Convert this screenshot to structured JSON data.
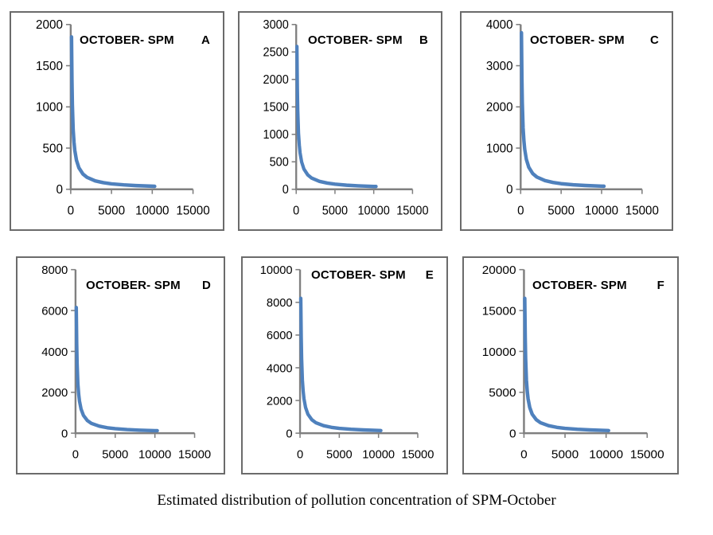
{
  "caption": "Estimated distribution of pollution concentration of SPM-October",
  "colors": {
    "curve": "#4F81BD",
    "axis": "#808080",
    "panel_border": "#6b6b6b",
    "text": "#000000"
  },
  "chart_data": [
    {
      "type": "line",
      "title": "OCTOBER- SPM",
      "panel_letter": "A",
      "xlabel": "",
      "ylabel": "",
      "xlim": [
        0,
        15000
      ],
      "ylim": [
        0,
        2000
      ],
      "xticks": [
        0,
        5000,
        10000,
        15000
      ],
      "yticks": [
        0,
        500,
        1000,
        1500,
        2000
      ],
      "x": [
        100,
        150,
        200,
        300,
        400,
        500,
        700,
        1000,
        1500,
        2000,
        3000,
        4000,
        5000,
        6500,
        8000,
        10000,
        10300
      ],
      "y": [
        1850,
        1310,
        1027,
        727,
        570,
        472,
        353,
        261,
        185,
        145,
        102,
        80,
        66,
        53,
        45,
        37,
        36
      ]
    },
    {
      "type": "line",
      "title": "OCTOBER- SPM",
      "panel_letter": "B",
      "xlabel": "",
      "ylabel": "",
      "xlim": [
        0,
        15000
      ],
      "ylim": [
        0,
        3000
      ],
      "xticks": [
        0,
        5000,
        10000,
        15000
      ],
      "yticks": [
        0,
        500,
        1000,
        1500,
        2000,
        2500,
        3000
      ],
      "x": [
        100,
        150,
        200,
        300,
        400,
        500,
        700,
        1000,
        1500,
        2000,
        3000,
        4000,
        5000,
        6500,
        8000,
        10000,
        10300
      ],
      "y": [
        2600,
        1841,
        1443,
        1022,
        801,
        663,
        497,
        367,
        260,
        203,
        144,
        113,
        93,
        75,
        63,
        52,
        51
      ]
    },
    {
      "type": "line",
      "title": "OCTOBER- SPM",
      "panel_letter": "C",
      "xlabel": "",
      "ylabel": "",
      "xlim": [
        0,
        15000
      ],
      "ylim": [
        0,
        4000
      ],
      "xticks": [
        0,
        5000,
        10000,
        15000
      ],
      "yticks": [
        0,
        1000,
        2000,
        3000,
        4000
      ],
      "x": [
        100,
        150,
        200,
        300,
        400,
        500,
        700,
        1000,
        1500,
        2000,
        3000,
        4000,
        5000,
        6500,
        8000,
        10000,
        10300
      ],
      "y": [
        3800,
        2690,
        2109,
        1493,
        1170,
        969,
        726,
        536,
        380,
        297,
        211,
        165,
        136,
        109,
        92,
        76,
        74
      ]
    },
    {
      "type": "line",
      "title": "OCTOBER- SPM",
      "panel_letter": "D",
      "xlabel": "",
      "ylabel": "",
      "xlim": [
        0,
        15000
      ],
      "ylim": [
        0,
        8000
      ],
      "xticks": [
        0,
        5000,
        10000,
        15000
      ],
      "yticks": [
        0,
        2000,
        4000,
        6000,
        8000
      ],
      "x": [
        100,
        150,
        200,
        300,
        400,
        500,
        700,
        1000,
        1500,
        2000,
        3000,
        4000,
        5000,
        6500,
        8000,
        10000,
        10300
      ],
      "y": [
        6150,
        4354,
        3413,
        2417,
        1894,
        1568,
        1175,
        867,
        615,
        481,
        341,
        267,
        221,
        176,
        148,
        123,
        120
      ]
    },
    {
      "type": "line",
      "title": "OCTOBER- SPM",
      "panel_letter": "E",
      "xlabel": "",
      "ylabel": "",
      "xlim": [
        0,
        15000
      ],
      "ylim": [
        0,
        10000
      ],
      "xticks": [
        0,
        5000,
        10000,
        15000
      ],
      "yticks": [
        0,
        2000,
        4000,
        6000,
        8000,
        10000
      ],
      "x": [
        100,
        150,
        200,
        300,
        400,
        500,
        700,
        1000,
        1500,
        2000,
        3000,
        4000,
        5000,
        6500,
        8000,
        10000,
        10300
      ],
      "y": [
        8250,
        5841,
        4579,
        3242,
        2541,
        2104,
        1576,
        1163,
        825,
        645,
        457,
        358,
        296,
        237,
        199,
        165,
        161
      ]
    },
    {
      "type": "line",
      "title": "OCTOBER- SPM",
      "panel_letter": "F",
      "xlabel": "",
      "ylabel": "",
      "xlim": [
        0,
        15000
      ],
      "ylim": [
        0,
        20000
      ],
      "xticks": [
        0,
        5000,
        10000,
        15000
      ],
      "yticks": [
        0,
        5000,
        10000,
        15000,
        20000
      ],
      "x": [
        100,
        150,
        200,
        300,
        400,
        500,
        700,
        1000,
        1500,
        2000,
        3000,
        4000,
        5000,
        6500,
        8000,
        10000,
        10300
      ],
      "y": [
        16500,
        11682,
        9158,
        6485,
        5082,
        4208,
        3152,
        2327,
        1650,
        1290,
        914,
        716,
        592,
        474,
        398,
        330,
        322
      ]
    }
  ]
}
